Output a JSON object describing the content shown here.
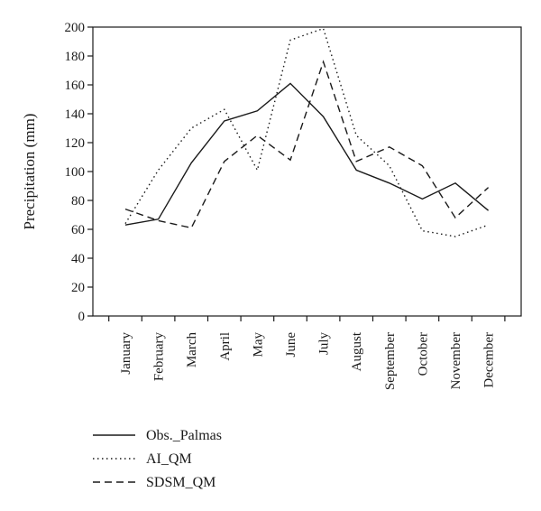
{
  "chart_data": {
    "type": "line",
    "ylabel": "Precipitation (mm)",
    "xlabel": "",
    "ylim": [
      0,
      200
    ],
    "yticks": [
      0,
      20,
      40,
      60,
      80,
      100,
      120,
      140,
      160,
      180,
      200
    ],
    "grid": false,
    "legend_position": "bottom-left",
    "categories": [
      "January",
      "February",
      "March",
      "April",
      "May",
      "June",
      "July",
      "August",
      "September",
      "October",
      "November",
      "December"
    ],
    "series": [
      {
        "name": "Obs._Palmas",
        "style": "solid",
        "color": "#1a1a1a",
        "values": [
          63,
          67,
          106,
          135,
          142,
          161,
          138,
          101,
          92,
          81,
          92,
          73
        ]
      },
      {
        "name": "AI_QM",
        "style": "dotted",
        "color": "#1a1a1a",
        "values": [
          64,
          101,
          130,
          143,
          101,
          191,
          199,
          125,
          104,
          59,
          55,
          63
        ]
      },
      {
        "name": "SDSM_QM",
        "style": "dashed",
        "color": "#1a1a1a",
        "values": [
          74,
          66,
          61,
          107,
          125,
          108,
          176,
          107,
          117,
          104,
          68,
          89
        ]
      }
    ]
  }
}
